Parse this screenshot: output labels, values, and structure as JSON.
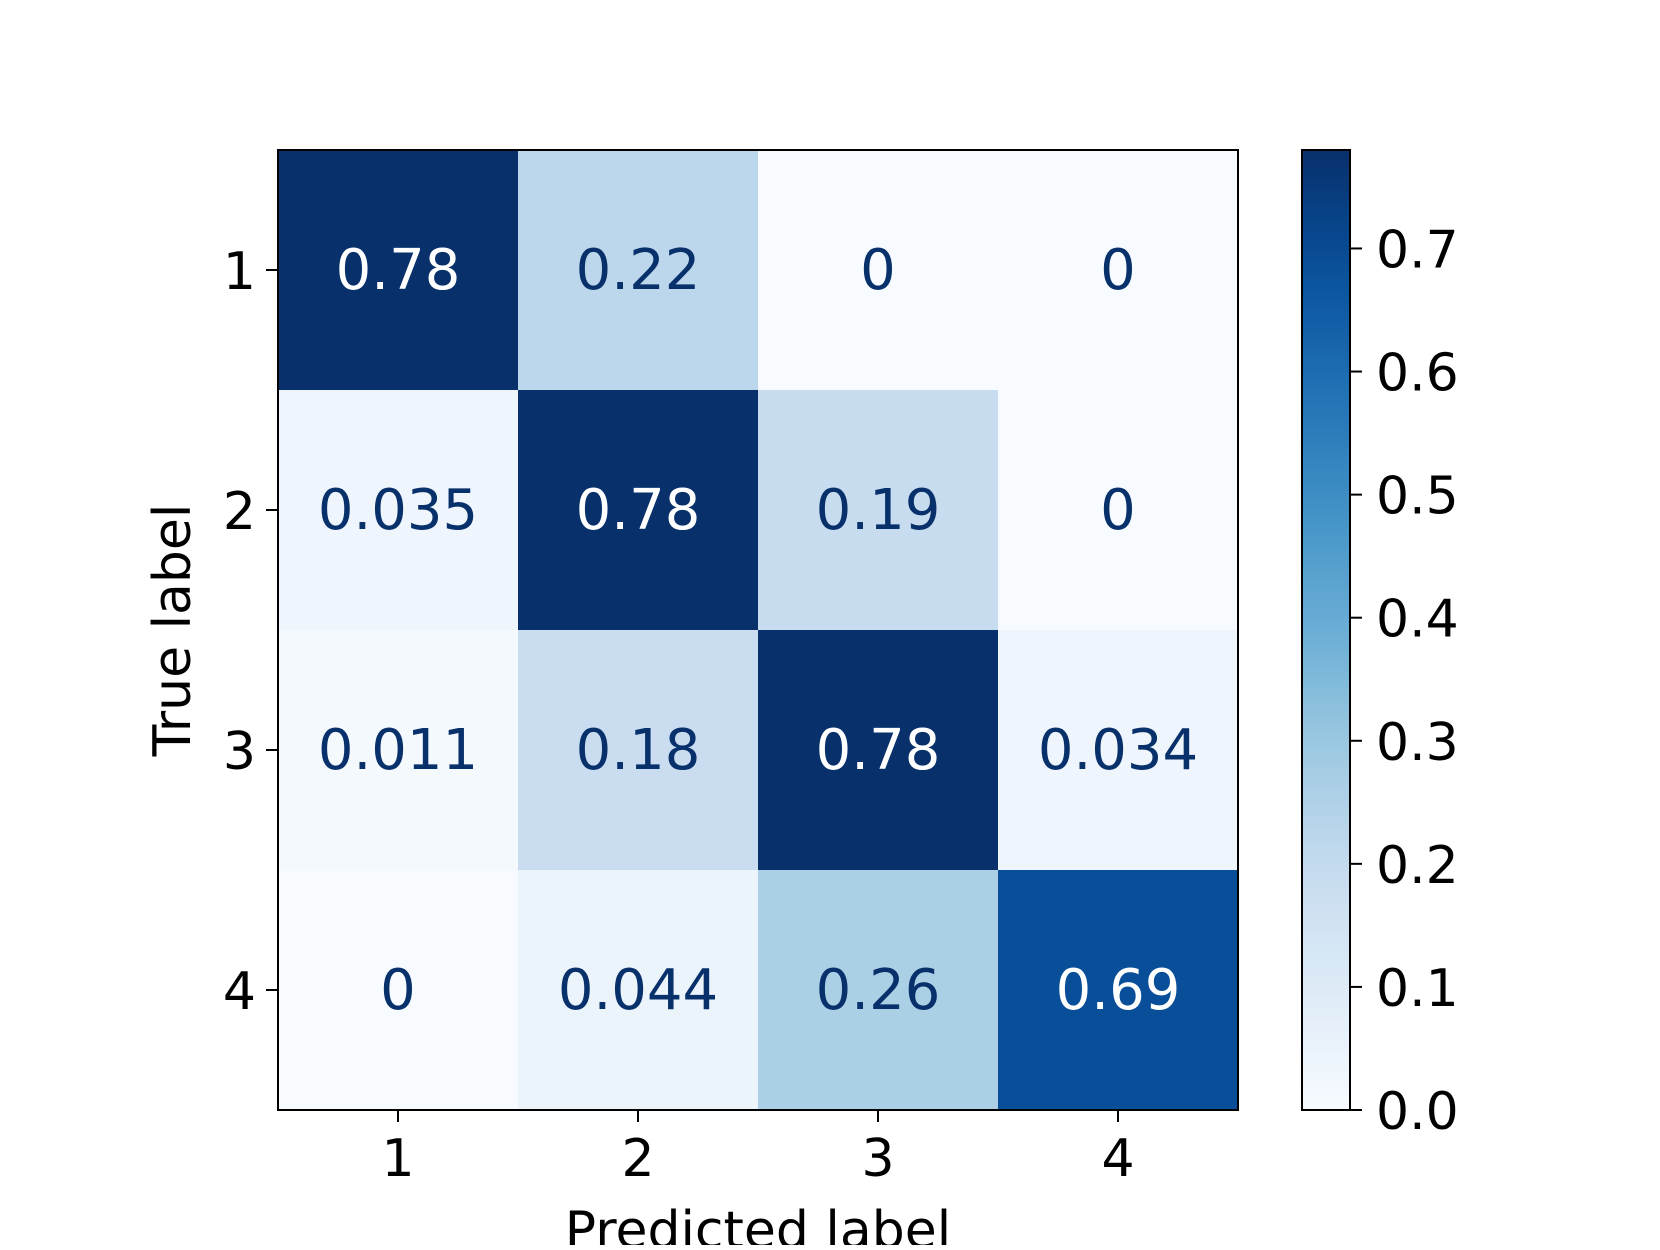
{
  "chart_data": {
    "type": "heatmap",
    "title": "",
    "xlabel": "Predicted label",
    "ylabel": "True label",
    "x_categories": [
      "1",
      "2",
      "3",
      "4"
    ],
    "y_categories": [
      "1",
      "2",
      "3",
      "4"
    ],
    "values": [
      [
        0.78,
        0.22,
        0,
        0
      ],
      [
        0.035,
        0.78,
        0.19,
        0
      ],
      [
        0.011,
        0.18,
        0.78,
        0.034
      ],
      [
        0,
        0.044,
        0.26,
        0.69
      ]
    ],
    "cell_labels": [
      [
        "0.78",
        "0.22",
        "0",
        "0"
      ],
      [
        "0.035",
        "0.78",
        "0.19",
        "0"
      ],
      [
        "0.011",
        "0.18",
        "0.78",
        "0.034"
      ],
      [
        "0",
        "0.044",
        "0.26",
        "0.69"
      ]
    ],
    "colormap": "Blues",
    "colorbar": {
      "range": [
        0,
        0.78
      ],
      "ticks": [
        0.0,
        0.1,
        0.2,
        0.3,
        0.4,
        0.5,
        0.6,
        0.7
      ],
      "tick_labels": [
        "0.0",
        "0.1",
        "0.2",
        "0.3",
        "0.4",
        "0.5",
        "0.6",
        "0.7"
      ]
    },
    "colors": {
      "dark_text": "#08306b",
      "light_text": "#ffffff",
      "axis": "#000000"
    }
  }
}
